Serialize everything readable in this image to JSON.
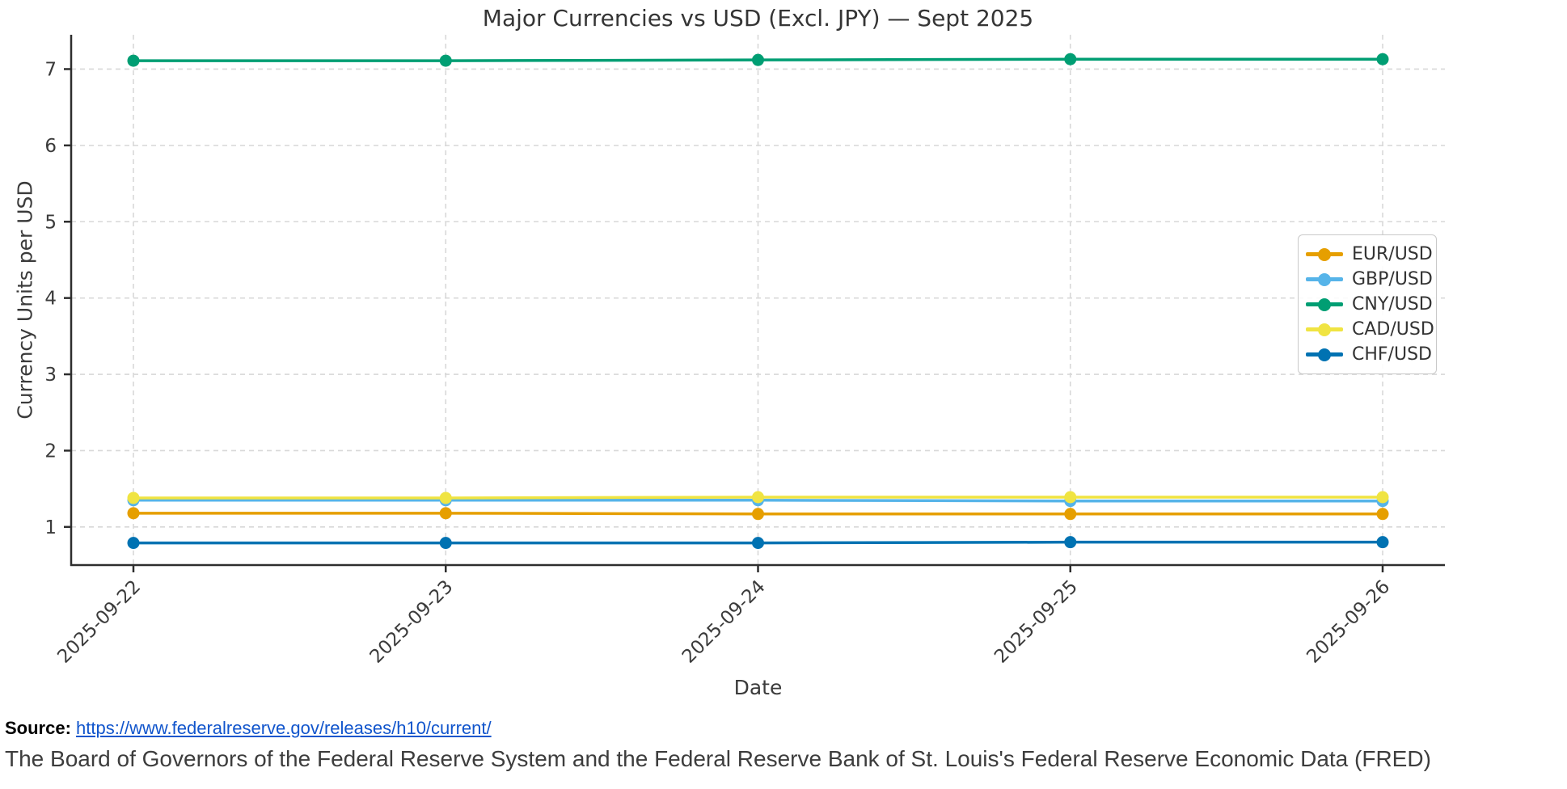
{
  "chart_data": {
    "type": "line",
    "title": "Major Currencies vs USD (Excl. JPY) — Sept 2025",
    "xlabel": "Date",
    "ylabel": "Currency Units per USD",
    "categories": [
      "2025-09-22",
      "2025-09-23",
      "2025-09-24",
      "2025-09-25",
      "2025-09-26"
    ],
    "yticks": [
      1,
      2,
      3,
      4,
      5,
      6,
      7
    ],
    "ylim": [
      0.5,
      7.45
    ],
    "grid": true,
    "legend_position": "right-center",
    "series": [
      {
        "name": "EUR/USD",
        "color": "#E69F00",
        "values": [
          1.18,
          1.18,
          1.17,
          1.17,
          1.17
        ]
      },
      {
        "name": "GBP/USD",
        "color": "#56B4E9",
        "values": [
          1.35,
          1.35,
          1.35,
          1.34,
          1.34
        ]
      },
      {
        "name": "CNY/USD",
        "color": "#009E73",
        "values": [
          7.11,
          7.11,
          7.12,
          7.13,
          7.13
        ]
      },
      {
        "name": "CAD/USD",
        "color": "#F0E442",
        "values": [
          1.38,
          1.38,
          1.39,
          1.39,
          1.39
        ]
      },
      {
        "name": "CHF/USD",
        "color": "#0072B2",
        "values": [
          0.79,
          0.79,
          0.79,
          0.8,
          0.8
        ]
      }
    ]
  },
  "caption": {
    "source_label": "Source:",
    "source_url": "https://www.federalreserve.gov/releases/h10/current/",
    "attribution": "The Board of Governors of the Federal Reserve System and the Federal Reserve Bank of St. Louis's Federal Reserve Economic Data (FRED)",
    "link_color": "#1155cc"
  }
}
